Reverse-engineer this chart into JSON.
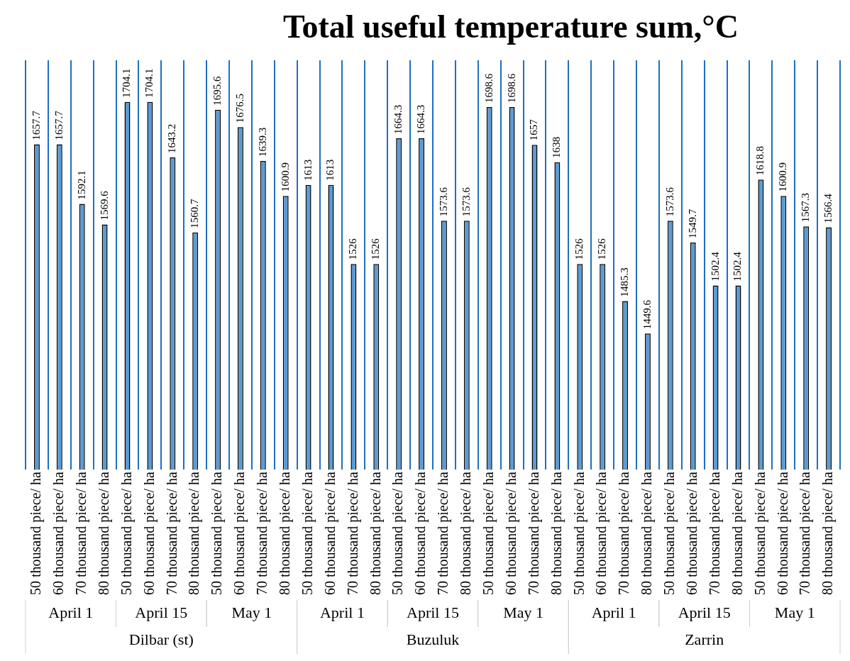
{
  "chart_data": {
    "type": "bar",
    "title": "Total useful temperature sum,°C",
    "categories": [
      "50 thousand piece/ ha",
      "60 thousand piece/ ha",
      "70 thousand piece/ ha",
      "80 thousand piece/ ha",
      "50 thousand piece/ ha",
      "60 thousand piece/ ha",
      "70 thousand piece/ ha",
      "80 thousand piece/ ha",
      "50 thousand piece/ ha",
      "60 thousand piece/ ha",
      "70 thousand piece/ ha",
      "80 thousand piece/ ha",
      "50 thousand piece/ ha",
      "60 thousand piece/ ha",
      "70 thousand piece/ ha",
      "80 thousand piece/ ha",
      "50 thousand piece/ ha",
      "60 thousand piece/ ha",
      "70 thousand piece/ ha",
      "80 thousand piece/ ha",
      "50 thousand piece/ ha",
      "60 thousand piece/ ha",
      "70 thousand piece/ ha",
      "80 thousand piece/ ha",
      "50 thousand piece/ ha",
      "60 thousand piece/ ha",
      "70 thousand piece/ ha",
      "80 thousand piece/ ha",
      "50 thousand piece/ ha",
      "60 thousand piece/ ha",
      "70 thousand piece/ ha",
      "80 thousand piece/ ha",
      "50 thousand piece/ ha",
      "60 thousand piece/ ha",
      "70 thousand piece/ ha",
      "80 thousand piece/ ha"
    ],
    "values": [
      1657.7,
      1657.7,
      1592.1,
      1569.6,
      1704.1,
      1704.1,
      1643.2,
      1560.7,
      1695.6,
      1676.5,
      1639.3,
      1600.9,
      1613,
      1613,
      1526,
      1526,
      1664.3,
      1664.3,
      1573.6,
      1573.6,
      1698.6,
      1698.6,
      1657,
      1638,
      1526,
      1526,
      1485.3,
      1449.6,
      1573.6,
      1549.7,
      1502.4,
      1502.4,
      1618.8,
      1600.9,
      1567.3,
      1566.4
    ],
    "color": "#5b9bd5",
    "data_labels": true,
    "ylim": [
      1300,
      1750
    ],
    "tick_labels": "x",
    "grid": "x",
    "legend": false,
    "annotations": [
      "April 1",
      "April 15",
      "May 1",
      "April 1",
      "April 15",
      "May 1",
      "April 1",
      "April 15",
      "May 1",
      "Dilbar (st)",
      "Buzuluk",
      "Zarrin"
    ]
  }
}
